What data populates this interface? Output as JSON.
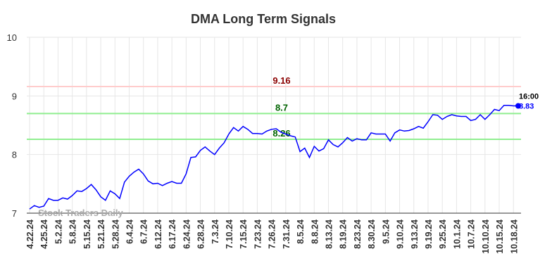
{
  "chart_data": {
    "type": "line",
    "title": "DMA Long Term Signals",
    "categories": [
      "4.22.24",
      null,
      null,
      "4.25.24",
      null,
      null,
      "5.2.24",
      null,
      null,
      "5.8.24",
      null,
      null,
      "5.15.24",
      null,
      null,
      "5.21.24",
      null,
      null,
      "5.28.24",
      null,
      null,
      "6.4.24",
      null,
      null,
      "6.7.24",
      null,
      null,
      "6.12.24",
      null,
      null,
      "6.17.24",
      null,
      null,
      "6.24.24",
      null,
      null,
      "6.28.24",
      null,
      null,
      "7.3.24",
      null,
      null,
      "7.10.24",
      null,
      null,
      "7.15.24",
      null,
      null,
      "7.23.24",
      null,
      null,
      "7.26.24",
      null,
      null,
      "7.31.24",
      null,
      null,
      "8.5.24",
      null,
      null,
      "8.8.24",
      null,
      null,
      "8.13.24",
      null,
      null,
      "8.19.24",
      null,
      null,
      "8.23.24",
      null,
      null,
      "8.30.24",
      null,
      null,
      "9.5.24",
      null,
      null,
      "9.10.24",
      null,
      null,
      "9.13.24",
      null,
      null,
      "9.19.24",
      null,
      null,
      "9.25.24",
      null,
      null,
      "10.1.24",
      null,
      null,
      "10.7.24",
      null,
      null,
      "10.10.24",
      null,
      null,
      "10.15.24",
      null,
      null,
      "10.18.24",
      null
    ],
    "series": [
      {
        "color": "#0000ff",
        "values": [
          7.07,
          7.13,
          7.1,
          7.12,
          7.25,
          7.22,
          7.22,
          7.26,
          7.24,
          7.3,
          7.38,
          7.37,
          7.42,
          7.49,
          7.4,
          7.28,
          7.22,
          7.38,
          7.33,
          7.25,
          7.53,
          7.63,
          7.7,
          7.75,
          7.67,
          7.55,
          7.5,
          7.51,
          7.47,
          7.51,
          7.54,
          7.51,
          7.51,
          7.67,
          7.95,
          7.96,
          8.07,
          8.13,
          8.06,
          8.0,
          8.11,
          8.2,
          8.35,
          8.46,
          8.4,
          8.48,
          8.43,
          8.36,
          8.36,
          8.35,
          8.4,
          8.43,
          8.44,
          8.38,
          8.35,
          8.32,
          8.3,
          8.05,
          8.11,
          7.95,
          8.14,
          8.06,
          8.1,
          8.25,
          8.17,
          8.13,
          8.2,
          8.29,
          8.23,
          8.27,
          8.25,
          8.25,
          8.37,
          8.35,
          8.35,
          8.35,
          8.23,
          8.37,
          8.42,
          8.4,
          8.41,
          8.44,
          8.48,
          8.45,
          8.56,
          8.68,
          8.67,
          8.6,
          8.65,
          8.68,
          8.66,
          8.65,
          8.65,
          8.58,
          8.6,
          8.68,
          8.6,
          8.68,
          8.77,
          8.75,
          8.84,
          8.84,
          8.83,
          8.83
        ]
      }
    ],
    "last_time": "16:00",
    "hlines": [
      {
        "value": 9.16,
        "color": "#ffcccc",
        "label_color": "#8b0000"
      },
      {
        "value": 8.7,
        "color": "#90ee90",
        "label_color": "#006400"
      },
      {
        "value": 8.26,
        "color": "#90ee90",
        "label_color": "#006400"
      }
    ],
    "watermark": "Stock Traders Daily",
    "ylim": [
      7,
      10
    ],
    "yticks": [
      7,
      8,
      9,
      10
    ],
    "grid": true
  }
}
